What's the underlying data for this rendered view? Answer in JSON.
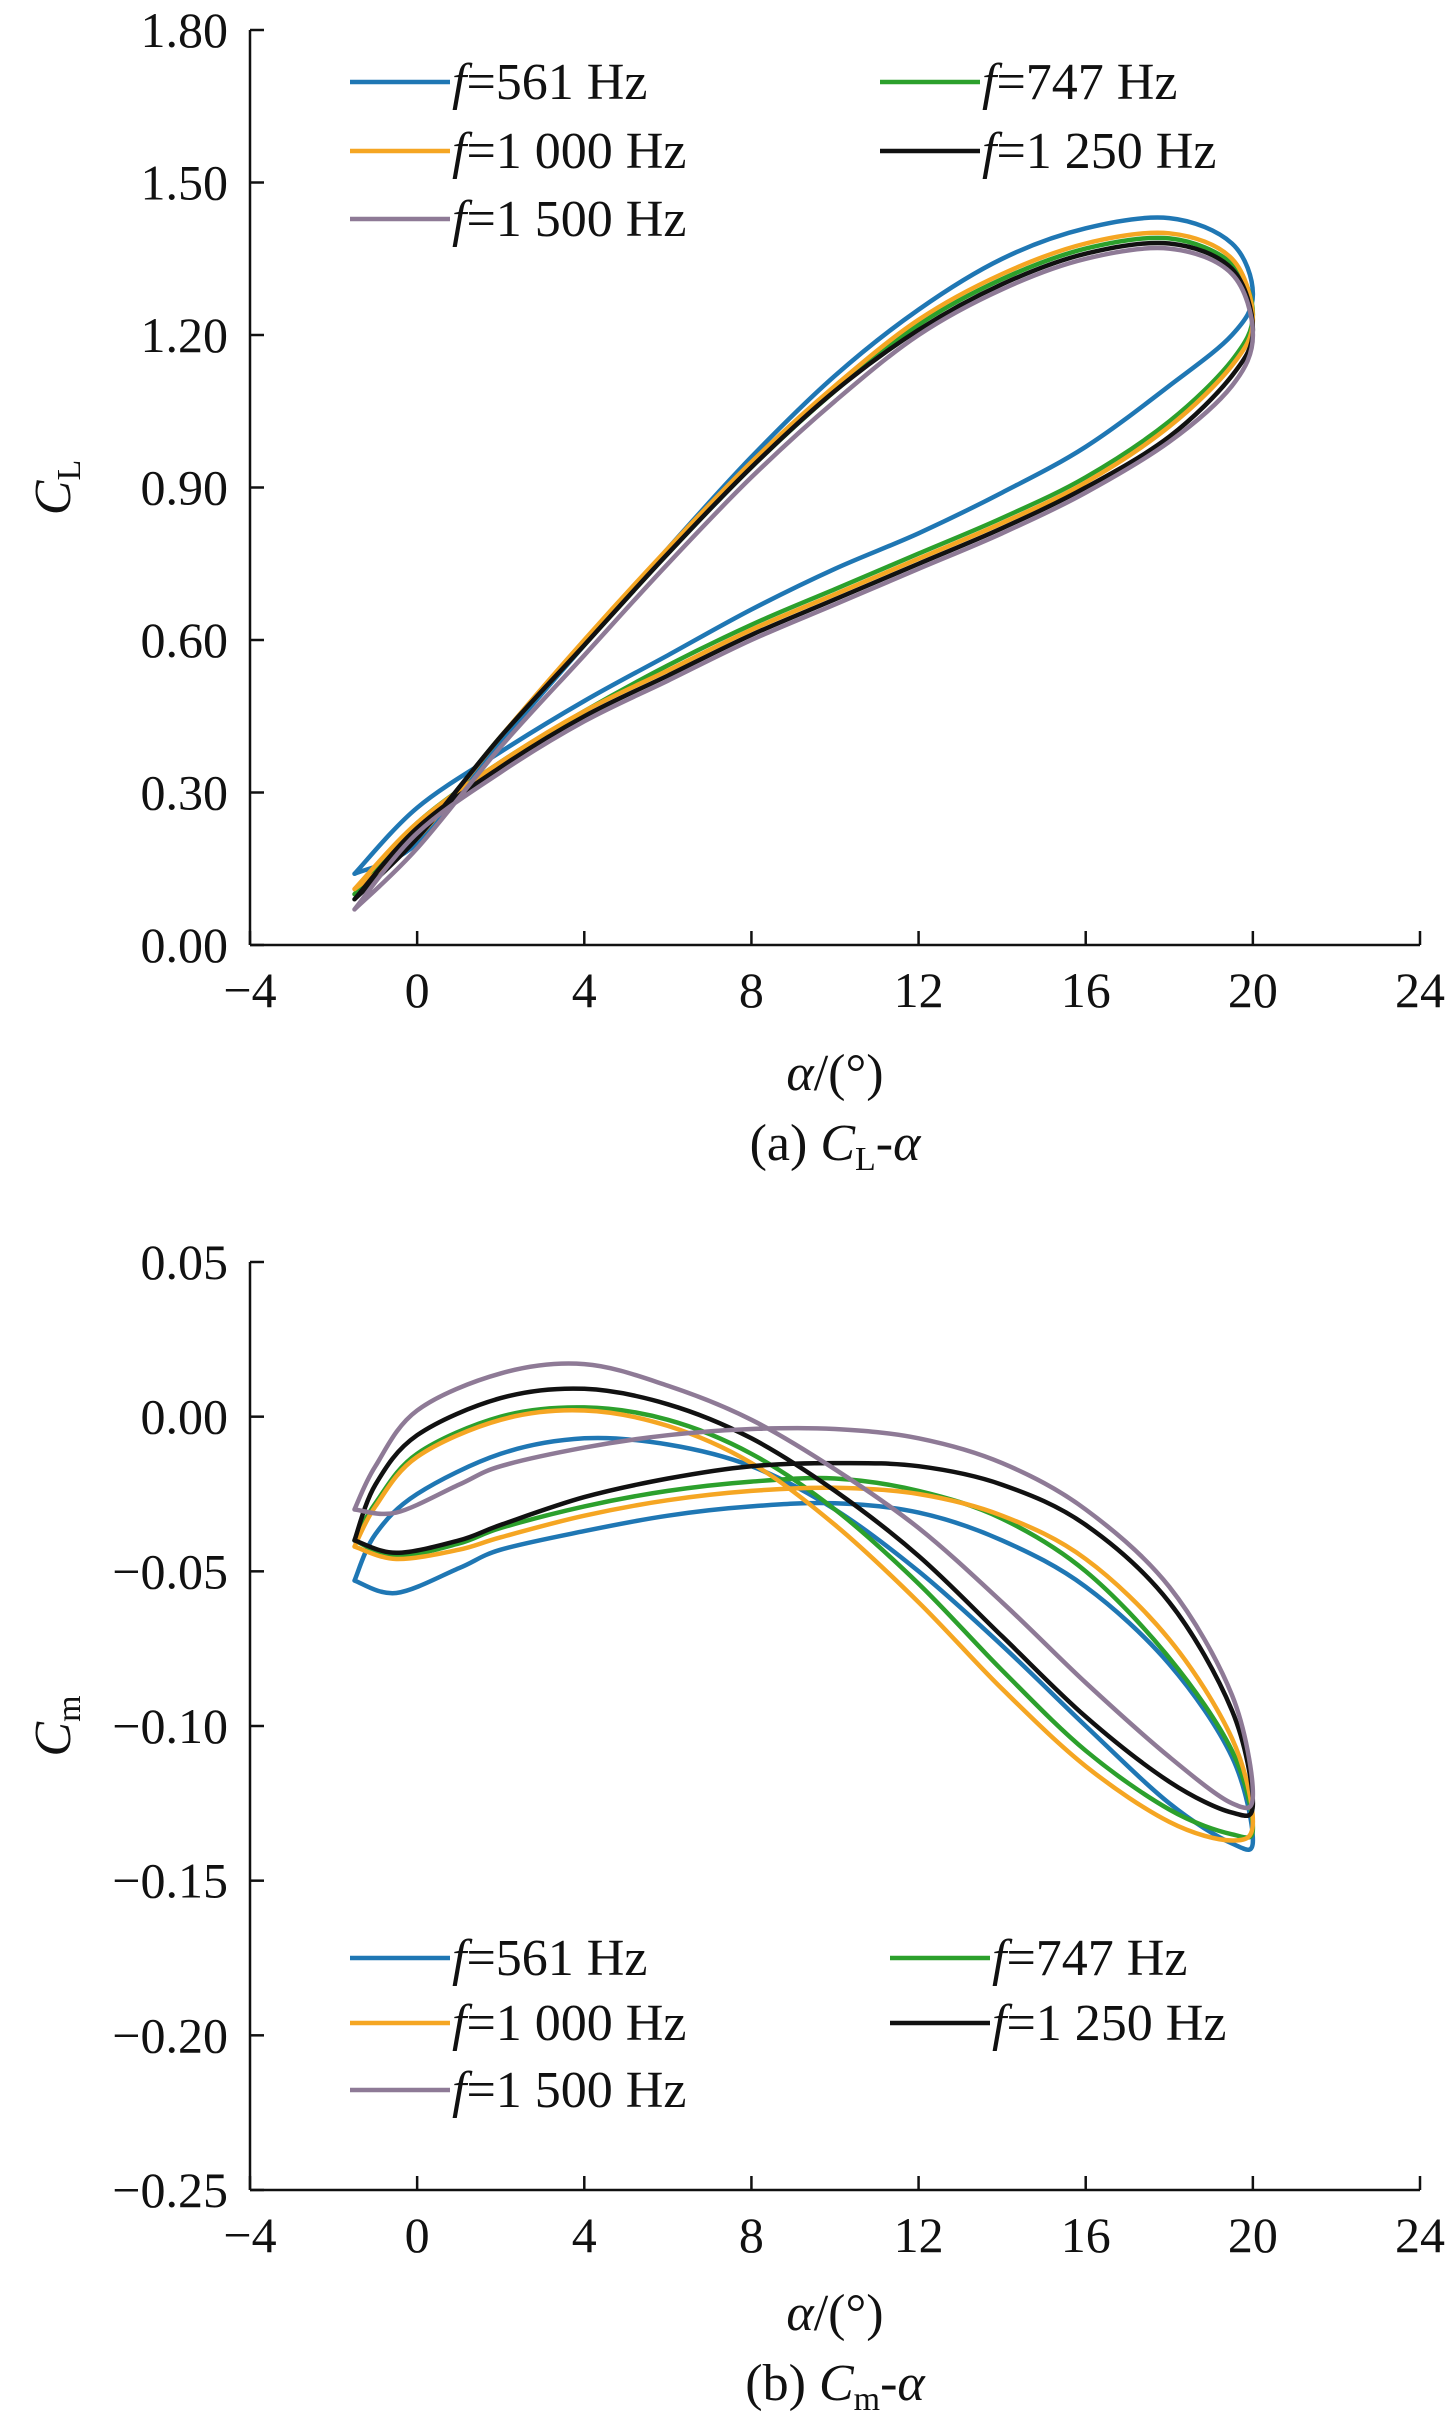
{
  "chart_data": [
    {
      "type": "line",
      "caption": "(a) C_L-α",
      "caption_parts": {
        "prefix": "(a) ",
        "sym": "C",
        "sub": "L",
        "suffix": "-α"
      },
      "xlabel": "α/(°)",
      "ylabel": "C_L",
      "ylabel_parts": {
        "sym": "C",
        "sub": "L"
      },
      "xlim": [
        -4,
        24
      ],
      "ylim": [
        0.0,
        1.8
      ],
      "xticks": [
        -4,
        0,
        4,
        8,
        12,
        16,
        20,
        24
      ],
      "xtick_labels": [
        "−4",
        "0",
        "4",
        "8",
        "12",
        "16",
        "20",
        "24"
      ],
      "yticks": [
        0.0,
        0.3,
        0.6,
        0.9,
        1.2,
        1.5,
        1.8
      ],
      "ytick_labels": [
        "0.00",
        "0.30",
        "0.60",
        "0.90",
        "1.20",
        "1.50",
        "1.80"
      ],
      "legend_position": "top-left",
      "series": [
        {
          "name": "f=561 Hz",
          "freq_label": "=561 Hz",
          "color": "#1f77b4",
          "x": [
            -1.5,
            0,
            2,
            4,
            6,
            8,
            10,
            12,
            14,
            16,
            18,
            19.5,
            20,
            19.5,
            18,
            16,
            14,
            12,
            10,
            8,
            6,
            4,
            2,
            0,
            -1.5
          ],
          "y": [
            0.14,
            0.27,
            0.38,
            0.48,
            0.57,
            0.66,
            0.74,
            0.81,
            0.89,
            0.98,
            1.1,
            1.2,
            1.28,
            1.38,
            1.43,
            1.41,
            1.35,
            1.25,
            1.12,
            0.96,
            0.78,
            0.59,
            0.4,
            0.2,
            0.14
          ]
        },
        {
          "name": "f=747 Hz",
          "freq_label": "=747 Hz",
          "color": "#2ca02c",
          "x": [
            -1.5,
            0,
            2,
            4,
            6,
            8,
            10,
            12,
            14,
            16,
            18,
            19.5,
            20,
            19.5,
            18,
            16,
            14,
            12,
            10,
            8,
            6,
            4,
            2,
            0,
            -1.5
          ],
          "y": [
            0.1,
            0.24,
            0.36,
            0.46,
            0.55,
            0.63,
            0.7,
            0.77,
            0.84,
            0.92,
            1.03,
            1.15,
            1.24,
            1.34,
            1.39,
            1.37,
            1.31,
            1.22,
            1.09,
            0.94,
            0.77,
            0.59,
            0.41,
            0.21,
            0.1
          ]
        },
        {
          "name": "f=1 000 Hz",
          "freq_label": "=1 000 Hz",
          "color": "#f5a623",
          "x": [
            -1.5,
            0,
            2,
            4,
            6,
            8,
            10,
            12,
            14,
            16,
            18,
            19.5,
            20,
            19.5,
            18,
            16,
            14,
            12,
            10,
            8,
            6,
            4,
            2,
            0,
            -1.5
          ],
          "y": [
            0.11,
            0.24,
            0.36,
            0.46,
            0.54,
            0.62,
            0.69,
            0.76,
            0.83,
            0.91,
            1.02,
            1.14,
            1.23,
            1.35,
            1.4,
            1.38,
            1.32,
            1.23,
            1.1,
            0.95,
            0.78,
            0.6,
            0.41,
            0.21,
            0.11
          ]
        },
        {
          "name": "f=1 250 Hz",
          "freq_label": "=1 250 Hz",
          "color": "#111111",
          "x": [
            -1.5,
            0,
            2,
            4,
            6,
            8,
            10,
            12,
            14,
            16,
            18,
            19.5,
            20,
            19.5,
            18,
            16,
            14,
            12,
            10,
            8,
            6,
            4,
            2,
            0,
            -1.5
          ],
          "y": [
            0.09,
            0.23,
            0.35,
            0.45,
            0.53,
            0.61,
            0.68,
            0.75,
            0.82,
            0.9,
            1.0,
            1.12,
            1.21,
            1.33,
            1.38,
            1.36,
            1.3,
            1.21,
            1.09,
            0.94,
            0.77,
            0.59,
            0.41,
            0.21,
            0.09
          ]
        },
        {
          "name": "f=1 500 Hz",
          "freq_label": "=1 500 Hz",
          "color": "#8e7a96",
          "x": [
            -1.5,
            0,
            2,
            4,
            6,
            8,
            10,
            12,
            14,
            16,
            18,
            19.5,
            20,
            19.5,
            18,
            16,
            14,
            12,
            10,
            8,
            6,
            4,
            2,
            0,
            -1.5
          ],
          "y": [
            0.07,
            0.22,
            0.34,
            0.44,
            0.52,
            0.6,
            0.67,
            0.74,
            0.81,
            0.89,
            0.99,
            1.1,
            1.2,
            1.32,
            1.37,
            1.35,
            1.29,
            1.2,
            1.07,
            0.92,
            0.75,
            0.57,
            0.39,
            0.19,
            0.07
          ]
        }
      ]
    },
    {
      "type": "line",
      "caption": "(b) C_m-α",
      "caption_parts": {
        "prefix": "(b) ",
        "sym": "C",
        "sub": "m",
        "suffix": "-α"
      },
      "xlabel": "α/(°)",
      "ylabel": "C_m",
      "ylabel_parts": {
        "sym": "C",
        "sub": "m"
      },
      "xlim": [
        -4,
        24
      ],
      "ylim": [
        -0.25,
        0.05
      ],
      "xticks": [
        -4,
        0,
        4,
        8,
        12,
        16,
        20,
        24
      ],
      "xtick_labels": [
        "−4",
        "0",
        "4",
        "8",
        "12",
        "16",
        "20",
        "24"
      ],
      "yticks": [
        -0.25,
        -0.2,
        -0.15,
        -0.1,
        -0.05,
        0.0,
        0.05
      ],
      "ytick_labels": [
        "−0.25",
        "−0.20",
        "−0.15",
        "−0.10",
        "−0.05",
        "0.00",
        "0.05"
      ],
      "legend_position": "bottom-left",
      "series": [
        {
          "name": "f=561 Hz",
          "freq_label": "=561 Hz",
          "color": "#1f77b4",
          "x": [
            -1.5,
            -0.5,
            1,
            2,
            4,
            6,
            8,
            10,
            12,
            14,
            16,
            18,
            19.5,
            20,
            19.5,
            18,
            16,
            14,
            12,
            10,
            8,
            6,
            4,
            2,
            0,
            -1,
            -1.5
          ],
          "y": [
            -0.053,
            -0.057,
            -0.049,
            -0.043,
            -0.037,
            -0.032,
            -0.029,
            -0.028,
            -0.031,
            -0.04,
            -0.055,
            -0.08,
            -0.11,
            -0.137,
            -0.138,
            -0.125,
            -0.1,
            -0.074,
            -0.05,
            -0.03,
            -0.016,
            -0.009,
            -0.007,
            -0.012,
            -0.025,
            -0.038,
            -0.053
          ]
        },
        {
          "name": "f=747 Hz",
          "freq_label": "=747 Hz",
          "color": "#2ca02c",
          "x": [
            -1.5,
            -0.5,
            1,
            2,
            4,
            6,
            8,
            10,
            12,
            14,
            16,
            18,
            19.5,
            20,
            19.5,
            18,
            16,
            14,
            12,
            10,
            8,
            6,
            4,
            2,
            0,
            -1,
            -1.5
          ],
          "y": [
            -0.04,
            -0.045,
            -0.041,
            -0.036,
            -0.029,
            -0.024,
            -0.021,
            -0.02,
            -0.024,
            -0.033,
            -0.05,
            -0.078,
            -0.108,
            -0.133,
            -0.135,
            -0.127,
            -0.108,
            -0.082,
            -0.054,
            -0.03,
            -0.012,
            -0.001,
            0.003,
            0.0,
            -0.012,
            -0.028,
            -0.04
          ]
        },
        {
          "name": "f=1 000 Hz",
          "freq_label": "=1 000 Hz",
          "color": "#f5a623",
          "x": [
            -1.5,
            -0.5,
            1,
            2,
            4,
            6,
            8,
            10,
            12,
            14,
            16,
            18,
            19.5,
            20,
            19.5,
            18,
            16,
            14,
            12,
            10,
            8,
            6,
            4,
            2,
            0,
            -1,
            -1.5
          ],
          "y": [
            -0.042,
            -0.046,
            -0.043,
            -0.039,
            -0.032,
            -0.027,
            -0.024,
            -0.023,
            -0.025,
            -0.032,
            -0.046,
            -0.072,
            -0.104,
            -0.131,
            -0.137,
            -0.131,
            -0.113,
            -0.088,
            -0.06,
            -0.035,
            -0.015,
            -0.003,
            0.002,
            -0.001,
            -0.013,
            -0.029,
            -0.042
          ]
        },
        {
          "name": "f=1 250 Hz",
          "freq_label": "=1 250 Hz",
          "color": "#111111",
          "x": [
            -1.5,
            -0.5,
            1,
            2,
            4,
            6,
            8,
            10,
            12,
            14,
            16,
            18,
            19.5,
            20,
            19.5,
            18,
            16,
            14,
            12,
            10,
            8,
            6,
            4,
            2,
            0,
            -1,
            -1.5
          ],
          "y": [
            -0.04,
            -0.044,
            -0.04,
            -0.035,
            -0.026,
            -0.02,
            -0.016,
            -0.015,
            -0.016,
            -0.022,
            -0.035,
            -0.06,
            -0.095,
            -0.125,
            -0.128,
            -0.118,
            -0.097,
            -0.071,
            -0.045,
            -0.024,
            -0.007,
            0.004,
            0.009,
            0.006,
            -0.006,
            -0.022,
            -0.04
          ]
        },
        {
          "name": "f=1 500 Hz",
          "freq_label": "=1 500 Hz",
          "color": "#8e7a96",
          "x": [
            -1.5,
            -0.5,
            1,
            2,
            4,
            6,
            8,
            10,
            12,
            14,
            16,
            18,
            19.5,
            20,
            19.5,
            18,
            16,
            14,
            12,
            10,
            8,
            6,
            4,
            2,
            0,
            -1,
            -1.5
          ],
          "y": [
            -0.03,
            -0.031,
            -0.022,
            -0.016,
            -0.01,
            -0.006,
            -0.004,
            -0.004,
            -0.007,
            -0.015,
            -0.03,
            -0.055,
            -0.09,
            -0.122,
            -0.125,
            -0.11,
            -0.086,
            -0.06,
            -0.036,
            -0.017,
            -0.001,
            0.01,
            0.017,
            0.014,
            0.002,
            -0.016,
            -0.03
          ]
        }
      ]
    }
  ]
}
